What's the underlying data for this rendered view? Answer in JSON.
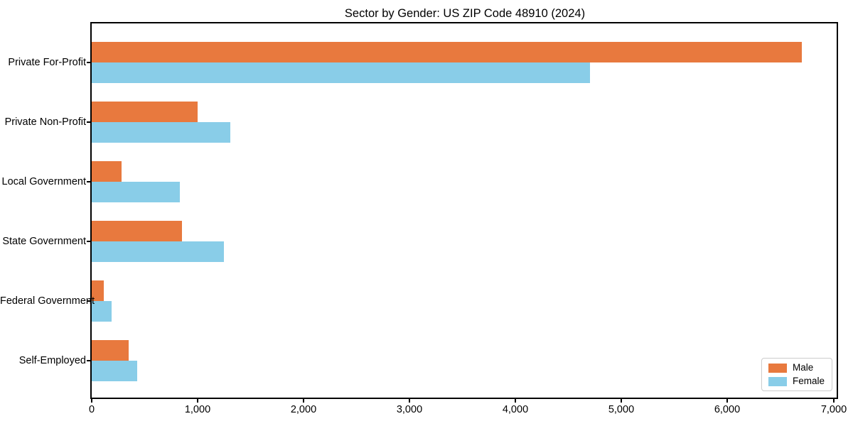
{
  "chart_data": {
    "type": "bar",
    "orientation": "horizontal",
    "title": "Sector by Gender: US ZIP Code 48910 (2024)",
    "categories": [
      "Private For-Profit",
      "Private Non-Profit",
      "Local Government",
      "State Government",
      "Federal Government",
      "Self-Employed"
    ],
    "series": [
      {
        "name": "Male",
        "color": "#e8793e",
        "values": [
          6700,
          1000,
          280,
          850,
          115,
          350
        ]
      },
      {
        "name": "Female",
        "color": "#89cde8",
        "values": [
          4700,
          1310,
          830,
          1250,
          190,
          430
        ]
      }
    ],
    "xlabel": "",
    "ylabel": "",
    "xlim": [
      0,
      7030
    ],
    "x_ticks": [
      0,
      1000,
      2000,
      3000,
      4000,
      5000,
      6000,
      7000
    ],
    "x_tick_labels": [
      "0",
      "1,000",
      "2,000",
      "3,000",
      "4,000",
      "5,000",
      "6,000",
      "7,000"
    ],
    "grid": false,
    "legend": {
      "position": "lower right",
      "entries": [
        "Male",
        "Female"
      ]
    }
  }
}
